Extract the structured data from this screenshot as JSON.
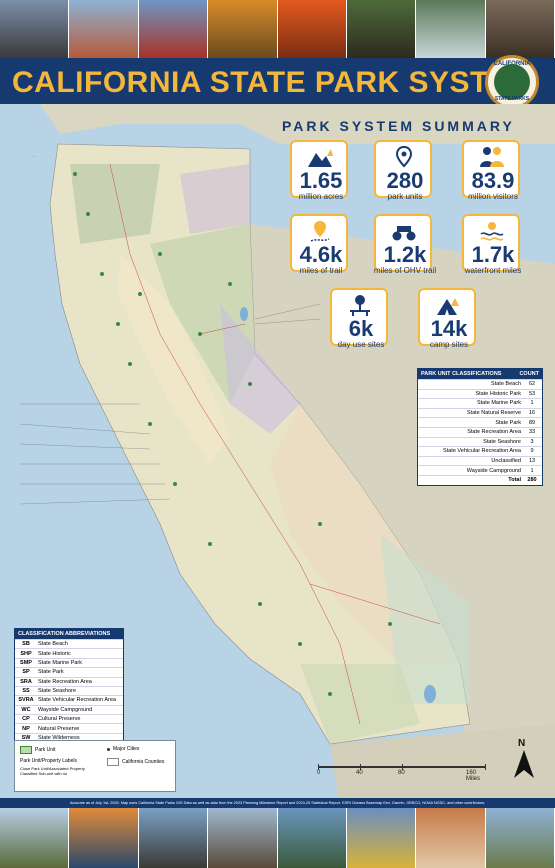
{
  "header": {
    "title": "CALIFORNIA STATE PARK SYSTEM",
    "seal_top": "CALIFORNIA",
    "seal_bottom": "STATE PARKS"
  },
  "photos": {
    "top": [
      "train-photo",
      "red-rock-photo",
      "barn-photo",
      "autumn-tree-photo",
      "poppy-field-photo",
      "redwoods-photo",
      "waterfall-photo",
      "museum-interior-photo"
    ],
    "bottom": [
      "palm-trees-photo",
      "beach-sunset-photo",
      "coastline-rocks-photo",
      "old-building-photo",
      "lake-tree-photo",
      "wildflower-field-photo",
      "dry-lakebed-photo",
      "bridge-photo"
    ]
  },
  "summary": {
    "title": "PARK SYSTEM SUMMARY",
    "stats": [
      {
        "icon": "mountains-icon",
        "value": "1.65",
        "label": "million acres"
      },
      {
        "icon": "map-pin-icon",
        "value": "280",
        "label": "park units"
      },
      {
        "icon": "people-icon",
        "value": "83.9",
        "label": "million visitors"
      },
      {
        "icon": "trail-marker-icon",
        "value": "4.6k",
        "label": "miles of trail"
      },
      {
        "icon": "atv-icon",
        "value": "1.2k",
        "label": "miles of OHV trail"
      },
      {
        "icon": "sun-waves-icon",
        "value": "1.7k",
        "label": "waterfront miles"
      },
      {
        "icon": "picnic-table-icon",
        "value": "6k",
        "label": "day use sites"
      },
      {
        "icon": "tent-icon",
        "value": "14k",
        "label": "camp sites"
      }
    ]
  },
  "classifications": {
    "header_name": "PARK UNIT CLASSIFICATIONS",
    "header_count": "COUNT",
    "rows": [
      {
        "name": "State Beach",
        "count": "62"
      },
      {
        "name": "State Historic Park",
        "count": "53"
      },
      {
        "name": "State Marine Park",
        "count": "1"
      },
      {
        "name": "State Natural Reserve",
        "count": "16"
      },
      {
        "name": "State Park",
        "count": "89"
      },
      {
        "name": "State Recreation Area",
        "count": "33"
      },
      {
        "name": "State Seashore",
        "count": "3"
      },
      {
        "name": "State Vehicular Recreation Area",
        "count": "9"
      },
      {
        "name": "Unclassified",
        "count": "13"
      },
      {
        "name": "Wayside Campground",
        "count": "1"
      }
    ],
    "total_label": "Total",
    "total_count": "280"
  },
  "abbreviations": {
    "header": "CLASSIFICATION ABBREVIATIONS",
    "rows": [
      {
        "code": "SB",
        "name": "State Beach"
      },
      {
        "code": "SHP",
        "name": "State Historic"
      },
      {
        "code": "SMP",
        "name": "State Marine Park"
      },
      {
        "code": "SP",
        "name": "State Park"
      },
      {
        "code": "SRA",
        "name": "State Recreation Area"
      },
      {
        "code": "SS",
        "name": "State Seashore"
      },
      {
        "code": "SVRA",
        "name": "State Vehicular Recreation Area"
      },
      {
        "code": "WC",
        "name": "Wayside Campground"
      },
      {
        "code": "CP",
        "name": "Cultural Preserve"
      },
      {
        "code": "NP",
        "name": "Natural Preserve"
      },
      {
        "code": "SW",
        "name": "State Wilderness"
      }
    ]
  },
  "legend": {
    "park_unit": "Park Unit",
    "labels_title": "Park Unit/Property Labels",
    "labels_sub": "Close Park Unit/Associated Property Classified Sub-unit with no",
    "major_cities": "Major Cities",
    "counties": "California Counties"
  },
  "scale": {
    "ticks": [
      "0",
      "40",
      "80",
      "160 Miles"
    ]
  },
  "north_label": "N",
  "credits": "Accurate as of July 1st, 2025. Map uses California State Parks GIS Data as well as data from the 2023 Planning Milestone Report and 2023-25 Statistical Report. ESRI Oceans Basemap Esri, Garmin, GEBCO, NOAA NGDC, and other contributors.",
  "colors": {
    "navy": "#163a70",
    "gold": "#f4b73a",
    "ocean": "#b8d3e6"
  }
}
